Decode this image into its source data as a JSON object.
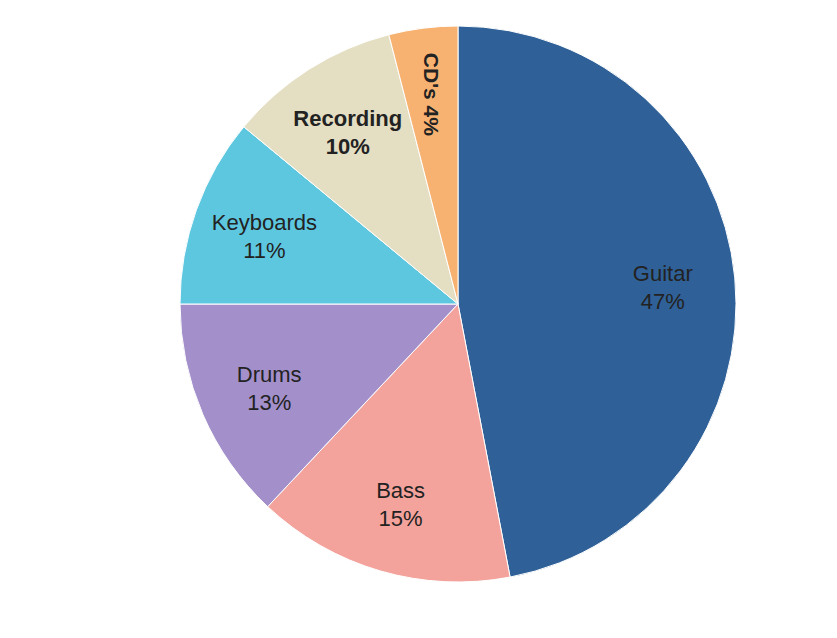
{
  "chart_data": {
    "type": "pie",
    "categories": [
      "Guitar",
      "Bass",
      "Drums",
      "Keyboards",
      "Recording",
      "CD's"
    ],
    "values": [
      47,
      15,
      13,
      11,
      10,
      4
    ],
    "value_labels": [
      "47%",
      "15%",
      "13%",
      "11%",
      "10%",
      "4%"
    ],
    "colors": [
      "#2f6198",
      "#f3a39c",
      "#a390cb",
      "#5ec7e0",
      "#e4dec3",
      "#f7b272"
    ],
    "data_labels": true
  }
}
